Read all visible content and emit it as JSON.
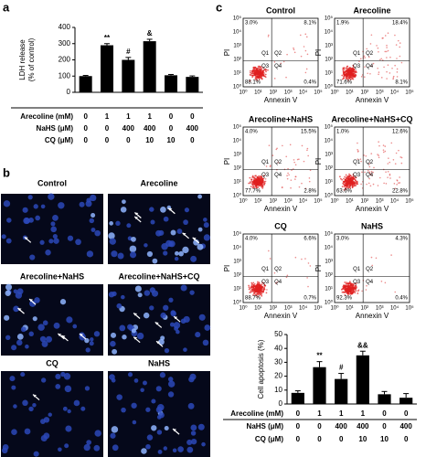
{
  "panel_labels": [
    "a",
    "b",
    "c"
  ],
  "chart_data": [
    {
      "type": "bar",
      "ylabel": [
        "LDH release",
        "(% of control)"
      ],
      "values": [
        100,
        290,
        200,
        315,
        105,
        95
      ],
      "errors": [
        4,
        10,
        15,
        12,
        5,
        6
      ],
      "annotations": [
        null,
        "**",
        "#",
        "&",
        null,
        null
      ],
      "color": "#000000",
      "ylim": [
        0,
        400
      ],
      "yticks": [
        0,
        100,
        200,
        300,
        400
      ],
      "conditions": [
        {
          "label": "Arecoline (mM)",
          "values": [
            0,
            1,
            1,
            1,
            0,
            0
          ]
        },
        {
          "label": "NaHS (μM)",
          "values": [
            0,
            0,
            400,
            400,
            0,
            400
          ]
        },
        {
          "label": "CQ (μM)",
          "values": [
            0,
            0,
            0,
            10,
            10,
            0
          ]
        }
      ]
    },
    {
      "type": "bar",
      "ylabel": [
        "Cell apoptosis (%)"
      ],
      "values": [
        8,
        26.5,
        18,
        35,
        7,
        4.5
      ],
      "errors": [
        1.5,
        4,
        4,
        3,
        2,
        3
      ],
      "annotations": [
        null,
        "**",
        "#",
        "&&",
        null,
        null
      ],
      "color": "#000000",
      "ylim": [
        0,
        50
      ],
      "yticks": [
        0,
        10,
        20,
        30,
        40,
        50
      ],
      "conditions": [
        {
          "label": "Arecoline (mM)",
          "values": [
            0,
            1,
            1,
            1,
            0,
            0
          ]
        },
        {
          "label": "NaHS (μM)",
          "values": [
            0,
            0,
            400,
            400,
            0,
            400
          ]
        },
        {
          "label": "CQ (μM)",
          "values": [
            0,
            0,
            0,
            10,
            10,
            0
          ]
        }
      ]
    }
  ],
  "fluorescence": {
    "images": [
      "Control",
      "Arecoline",
      "Arecoline+NaHS",
      "Arecoline+NaHS+CQ",
      "CQ",
      "NaHS"
    ]
  },
  "flow_cytometry": {
    "x_label": "Annexin V",
    "y_label": "PI",
    "ticks": [
      "10⁰",
      "10¹",
      "10²",
      "10³",
      "10⁴",
      "10⁵"
    ],
    "quadrant_labels": [
      "Q1",
      "Q2",
      "Q3",
      "Q4"
    ],
    "plots": [
      {
        "title": "Control",
        "quadrants": [
          "3.0%",
          "8.1%",
          "88.1%",
          "0.4%"
        ]
      },
      {
        "title": "Arecoline",
        "quadrants": [
          "1.9%",
          "18.4%",
          "71.6%",
          "8.1%"
        ]
      },
      {
        "title": "Arecoline+NaHS",
        "quadrants": [
          "4.0%",
          "15.5%",
          "77.7%",
          "2.8%"
        ]
      },
      {
        "title": "Arecoline+NaHS+CQ",
        "quadrants": [
          "1.0%",
          "12.6%",
          "63.6%",
          "22.8%"
        ]
      },
      {
        "title": "CQ",
        "quadrants": [
          "4.0%",
          "6.6%",
          "88.7%",
          "0.7%"
        ]
      },
      {
        "title": "NaHS",
        "quadrants": [
          "3.0%",
          "4.3%",
          "92.3%",
          "0.4%"
        ]
      }
    ]
  }
}
